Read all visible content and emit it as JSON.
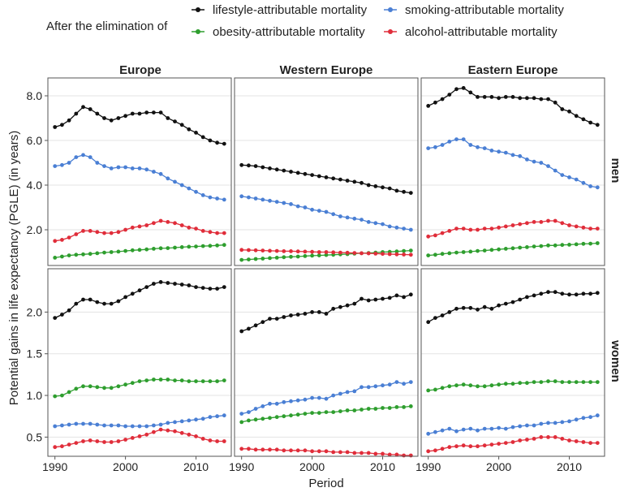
{
  "legend": {
    "title": "After the elimination of",
    "items": [
      {
        "label": "lifestyle-attributable mortality",
        "color": "#111111"
      },
      {
        "label": "smoking-attributable mortality",
        "color": "#4a7fd4"
      },
      {
        "label": "obesity-attributable mortality",
        "color": "#2e9e2e"
      },
      {
        "label": "alcohol-attributable mortality",
        "color": "#e02d3a"
      }
    ]
  },
  "axes": {
    "xlabel": "Period",
    "ylabel": "Potential gains in life expectancy (PGLE) (in years)",
    "x_ticks": [
      "1990",
      "2000",
      "2010"
    ],
    "x_tick_values": [
      1990,
      2000,
      2010
    ],
    "xlim": [
      1989,
      2015
    ],
    "men_ylim": [
      0.4,
      8.8
    ],
    "men_y_ticks": [
      "2.0",
      "4.0",
      "6.0",
      "8.0"
    ],
    "men_y_tick_values": [
      2,
      4,
      6,
      8
    ],
    "women_ylim": [
      0.27,
      2.52
    ],
    "women_y_ticks": [
      "0.5",
      "1.0",
      "1.5",
      "2.0"
    ],
    "women_y_tick_values": [
      0.5,
      1.0,
      1.5,
      2.0
    ]
  },
  "columns": [
    "Europe",
    "Western Europe",
    "Eastern Europe"
  ],
  "rows": [
    "men",
    "women"
  ],
  "chart_data": {
    "type": "line",
    "grid": true,
    "legend_position": "top",
    "x": [
      1990,
      1991,
      1992,
      1993,
      1994,
      1995,
      1996,
      1997,
      1998,
      1999,
      2000,
      2001,
      2002,
      2003,
      2004,
      2005,
      2006,
      2007,
      2008,
      2009,
      2010,
      2011,
      2012,
      2013,
      2014
    ],
    "panels": [
      {
        "column": "Europe",
        "row": "men",
        "series": [
          {
            "name": "lifestyle-attributable mortality",
            "values": [
              6.6,
              6.7,
              6.9,
              7.2,
              7.5,
              7.4,
              7.2,
              7.0,
              6.9,
              7.0,
              7.1,
              7.2,
              7.2,
              7.25,
              7.25,
              7.25,
              7.0,
              6.85,
              6.7,
              6.5,
              6.35,
              6.15,
              6.0,
              5.9,
              5.85
            ]
          },
          {
            "name": "smoking-attributable mortality",
            "values": [
              4.85,
              4.9,
              5.0,
              5.25,
              5.35,
              5.25,
              5.0,
              4.85,
              4.75,
              4.8,
              4.8,
              4.75,
              4.75,
              4.7,
              4.6,
              4.5,
              4.3,
              4.15,
              4.0,
              3.85,
              3.7,
              3.55,
              3.45,
              3.4,
              3.35
            ]
          },
          {
            "name": "obesity-attributable mortality",
            "values": [
              0.75,
              0.8,
              0.85,
              0.88,
              0.9,
              0.92,
              0.95,
              0.98,
              1.0,
              1.02,
              1.05,
              1.08,
              1.1,
              1.12,
              1.15,
              1.17,
              1.18,
              1.2,
              1.22,
              1.24,
              1.25,
              1.27,
              1.28,
              1.3,
              1.32
            ]
          },
          {
            "name": "alcohol-attributable mortality",
            "values": [
              1.5,
              1.55,
              1.65,
              1.8,
              1.95,
              1.95,
              1.9,
              1.85,
              1.85,
              1.9,
              2.0,
              2.1,
              2.15,
              2.2,
              2.3,
              2.4,
              2.35,
              2.3,
              2.2,
              2.1,
              2.05,
              1.95,
              1.9,
              1.85,
              1.85
            ]
          }
        ]
      },
      {
        "column": "Western Europe",
        "row": "men",
        "series": [
          {
            "name": "lifestyle-attributable mortality",
            "values": [
              4.9,
              4.88,
              4.85,
              4.8,
              4.75,
              4.7,
              4.65,
              4.6,
              4.55,
              4.5,
              4.45,
              4.4,
              4.35,
              4.3,
              4.25,
              4.2,
              4.15,
              4.1,
              4.0,
              3.95,
              3.9,
              3.85,
              3.75,
              3.7,
              3.65
            ]
          },
          {
            "name": "smoking-attributable mortality",
            "values": [
              3.5,
              3.45,
              3.4,
              3.35,
              3.3,
              3.25,
              3.2,
              3.15,
              3.05,
              3.0,
              2.9,
              2.85,
              2.8,
              2.7,
              2.6,
              2.55,
              2.5,
              2.45,
              2.35,
              2.3,
              2.25,
              2.15,
              2.1,
              2.05,
              2.0
            ]
          },
          {
            "name": "obesity-attributable mortality",
            "values": [
              0.65,
              0.67,
              0.69,
              0.71,
              0.73,
              0.75,
              0.77,
              0.79,
              0.8,
              0.82,
              0.84,
              0.85,
              0.87,
              0.88,
              0.9,
              0.91,
              0.93,
              0.95,
              0.96,
              0.98,
              1.0,
              1.01,
              1.03,
              1.05,
              1.07
            ]
          },
          {
            "name": "alcohol-attributable mortality",
            "values": [
              1.1,
              1.09,
              1.08,
              1.07,
              1.06,
              1.05,
              1.04,
              1.04,
              1.03,
              1.02,
              1.01,
              1.0,
              1.0,
              0.99,
              0.98,
              0.97,
              0.96,
              0.95,
              0.94,
              0.93,
              0.92,
              0.91,
              0.9,
              0.89,
              0.88
            ]
          }
        ]
      },
      {
        "column": "Eastern Europe",
        "row": "men",
        "series": [
          {
            "name": "lifestyle-attributable mortality",
            "values": [
              7.55,
              7.7,
              7.85,
              8.05,
              8.3,
              8.35,
              8.15,
              7.95,
              7.95,
              7.95,
              7.9,
              7.95,
              7.95,
              7.9,
              7.9,
              7.9,
              7.85,
              7.85,
              7.7,
              7.4,
              7.3,
              7.1,
              6.95,
              6.8,
              6.7
            ]
          },
          {
            "name": "smoking-attributable mortality",
            "values": [
              5.65,
              5.7,
              5.8,
              5.95,
              6.05,
              6.05,
              5.8,
              5.7,
              5.65,
              5.55,
              5.5,
              5.45,
              5.35,
              5.3,
              5.15,
              5.05,
              5.0,
              4.85,
              4.65,
              4.45,
              4.35,
              4.25,
              4.1,
              3.95,
              3.9
            ]
          },
          {
            "name": "obesity-attributable mortality",
            "values": [
              0.85,
              0.88,
              0.92,
              0.95,
              0.98,
              1.0,
              1.02,
              1.05,
              1.07,
              1.1,
              1.12,
              1.15,
              1.17,
              1.2,
              1.22,
              1.25,
              1.27,
              1.3,
              1.3,
              1.32,
              1.33,
              1.35,
              1.37,
              1.38,
              1.4
            ]
          },
          {
            "name": "alcohol-attributable mortality",
            "values": [
              1.7,
              1.75,
              1.85,
              1.95,
              2.05,
              2.05,
              2.0,
              2.0,
              2.05,
              2.05,
              2.1,
              2.15,
              2.2,
              2.25,
              2.3,
              2.35,
              2.35,
              2.4,
              2.4,
              2.3,
              2.2,
              2.15,
              2.1,
              2.05,
              2.05
            ]
          }
        ]
      },
      {
        "column": "Europe",
        "row": "women",
        "series": [
          {
            "name": "lifestyle-attributable mortality",
            "values": [
              1.93,
              1.97,
              2.02,
              2.1,
              2.15,
              2.15,
              2.12,
              2.1,
              2.1,
              2.13,
              2.18,
              2.22,
              2.26,
              2.3,
              2.34,
              2.36,
              2.35,
              2.34,
              2.33,
              2.32,
              2.3,
              2.29,
              2.28,
              2.28,
              2.3
            ]
          },
          {
            "name": "smoking-attributable mortality",
            "values": [
              0.63,
              0.64,
              0.65,
              0.66,
              0.66,
              0.66,
              0.65,
              0.64,
              0.64,
              0.64,
              0.63,
              0.63,
              0.63,
              0.63,
              0.64,
              0.65,
              0.67,
              0.68,
              0.69,
              0.7,
              0.71,
              0.72,
              0.74,
              0.75,
              0.76
            ]
          },
          {
            "name": "obesity-attributable mortality",
            "values": [
              0.99,
              1.0,
              1.04,
              1.08,
              1.11,
              1.11,
              1.1,
              1.09,
              1.09,
              1.11,
              1.13,
              1.15,
              1.17,
              1.18,
              1.19,
              1.19,
              1.19,
              1.18,
              1.18,
              1.17,
              1.17,
              1.17,
              1.17,
              1.17,
              1.18
            ]
          },
          {
            "name": "alcohol-attributable mortality",
            "values": [
              0.38,
              0.39,
              0.41,
              0.43,
              0.45,
              0.46,
              0.45,
              0.44,
              0.44,
              0.45,
              0.47,
              0.49,
              0.51,
              0.53,
              0.56,
              0.59,
              0.58,
              0.57,
              0.55,
              0.53,
              0.51,
              0.48,
              0.46,
              0.45,
              0.45
            ]
          }
        ]
      },
      {
        "column": "Western Europe",
        "row": "women",
        "series": [
          {
            "name": "lifestyle-attributable mortality",
            "values": [
              1.77,
              1.8,
              1.84,
              1.88,
              1.92,
              1.92,
              1.94,
              1.96,
              1.97,
              1.98,
              2.0,
              2.0,
              1.98,
              2.04,
              2.06,
              2.08,
              2.1,
              2.16,
              2.14,
              2.15,
              2.16,
              2.17,
              2.2,
              2.18,
              2.21
            ]
          },
          {
            "name": "smoking-attributable mortality",
            "values": [
              0.78,
              0.8,
              0.84,
              0.87,
              0.9,
              0.9,
              0.92,
              0.93,
              0.94,
              0.95,
              0.97,
              0.97,
              0.96,
              1.0,
              1.02,
              1.04,
              1.05,
              1.1,
              1.1,
              1.11,
              1.12,
              1.13,
              1.16,
              1.14,
              1.16
            ]
          },
          {
            "name": "obesity-attributable mortality",
            "values": [
              0.68,
              0.7,
              0.71,
              0.72,
              0.73,
              0.74,
              0.75,
              0.76,
              0.77,
              0.78,
              0.79,
              0.79,
              0.8,
              0.8,
              0.81,
              0.82,
              0.82,
              0.83,
              0.84,
              0.84,
              0.85,
              0.85,
              0.86,
              0.86,
              0.87
            ]
          },
          {
            "name": "alcohol-attributable mortality",
            "values": [
              0.36,
              0.36,
              0.35,
              0.35,
              0.35,
              0.35,
              0.34,
              0.34,
              0.34,
              0.34,
              0.33,
              0.33,
              0.33,
              0.32,
              0.32,
              0.32,
              0.31,
              0.31,
              0.31,
              0.3,
              0.3,
              0.29,
              0.29,
              0.28,
              0.28
            ]
          }
        ]
      },
      {
        "column": "Eastern Europe",
        "row": "women",
        "series": [
          {
            "name": "lifestyle-attributable mortality",
            "values": [
              1.88,
              1.93,
              1.96,
              2.0,
              2.04,
              2.05,
              2.05,
              2.03,
              2.06,
              2.04,
              2.08,
              2.1,
              2.12,
              2.15,
              2.18,
              2.2,
              2.22,
              2.24,
              2.24,
              2.22,
              2.21,
              2.21,
              2.22,
              2.22,
              2.23
            ]
          },
          {
            "name": "smoking-attributable mortality",
            "values": [
              0.54,
              0.56,
              0.58,
              0.6,
              0.57,
              0.59,
              0.6,
              0.58,
              0.6,
              0.6,
              0.61,
              0.6,
              0.62,
              0.63,
              0.64,
              0.64,
              0.66,
              0.67,
              0.67,
              0.68,
              0.69,
              0.71,
              0.73,
              0.74,
              0.76
            ]
          },
          {
            "name": "obesity-attributable mortality",
            "values": [
              1.06,
              1.07,
              1.09,
              1.11,
              1.12,
              1.13,
              1.12,
              1.11,
              1.11,
              1.12,
              1.13,
              1.14,
              1.14,
              1.15,
              1.15,
              1.16,
              1.16,
              1.17,
              1.17,
              1.16,
              1.16,
              1.16,
              1.16,
              1.16,
              1.16
            ]
          },
          {
            "name": "alcohol-attributable mortality",
            "values": [
              0.33,
              0.34,
              0.36,
              0.38,
              0.39,
              0.4,
              0.39,
              0.39,
              0.4,
              0.41,
              0.42,
              0.43,
              0.44,
              0.46,
              0.47,
              0.48,
              0.5,
              0.5,
              0.5,
              0.48,
              0.46,
              0.45,
              0.44,
              0.43,
              0.43
            ]
          }
        ]
      }
    ]
  }
}
